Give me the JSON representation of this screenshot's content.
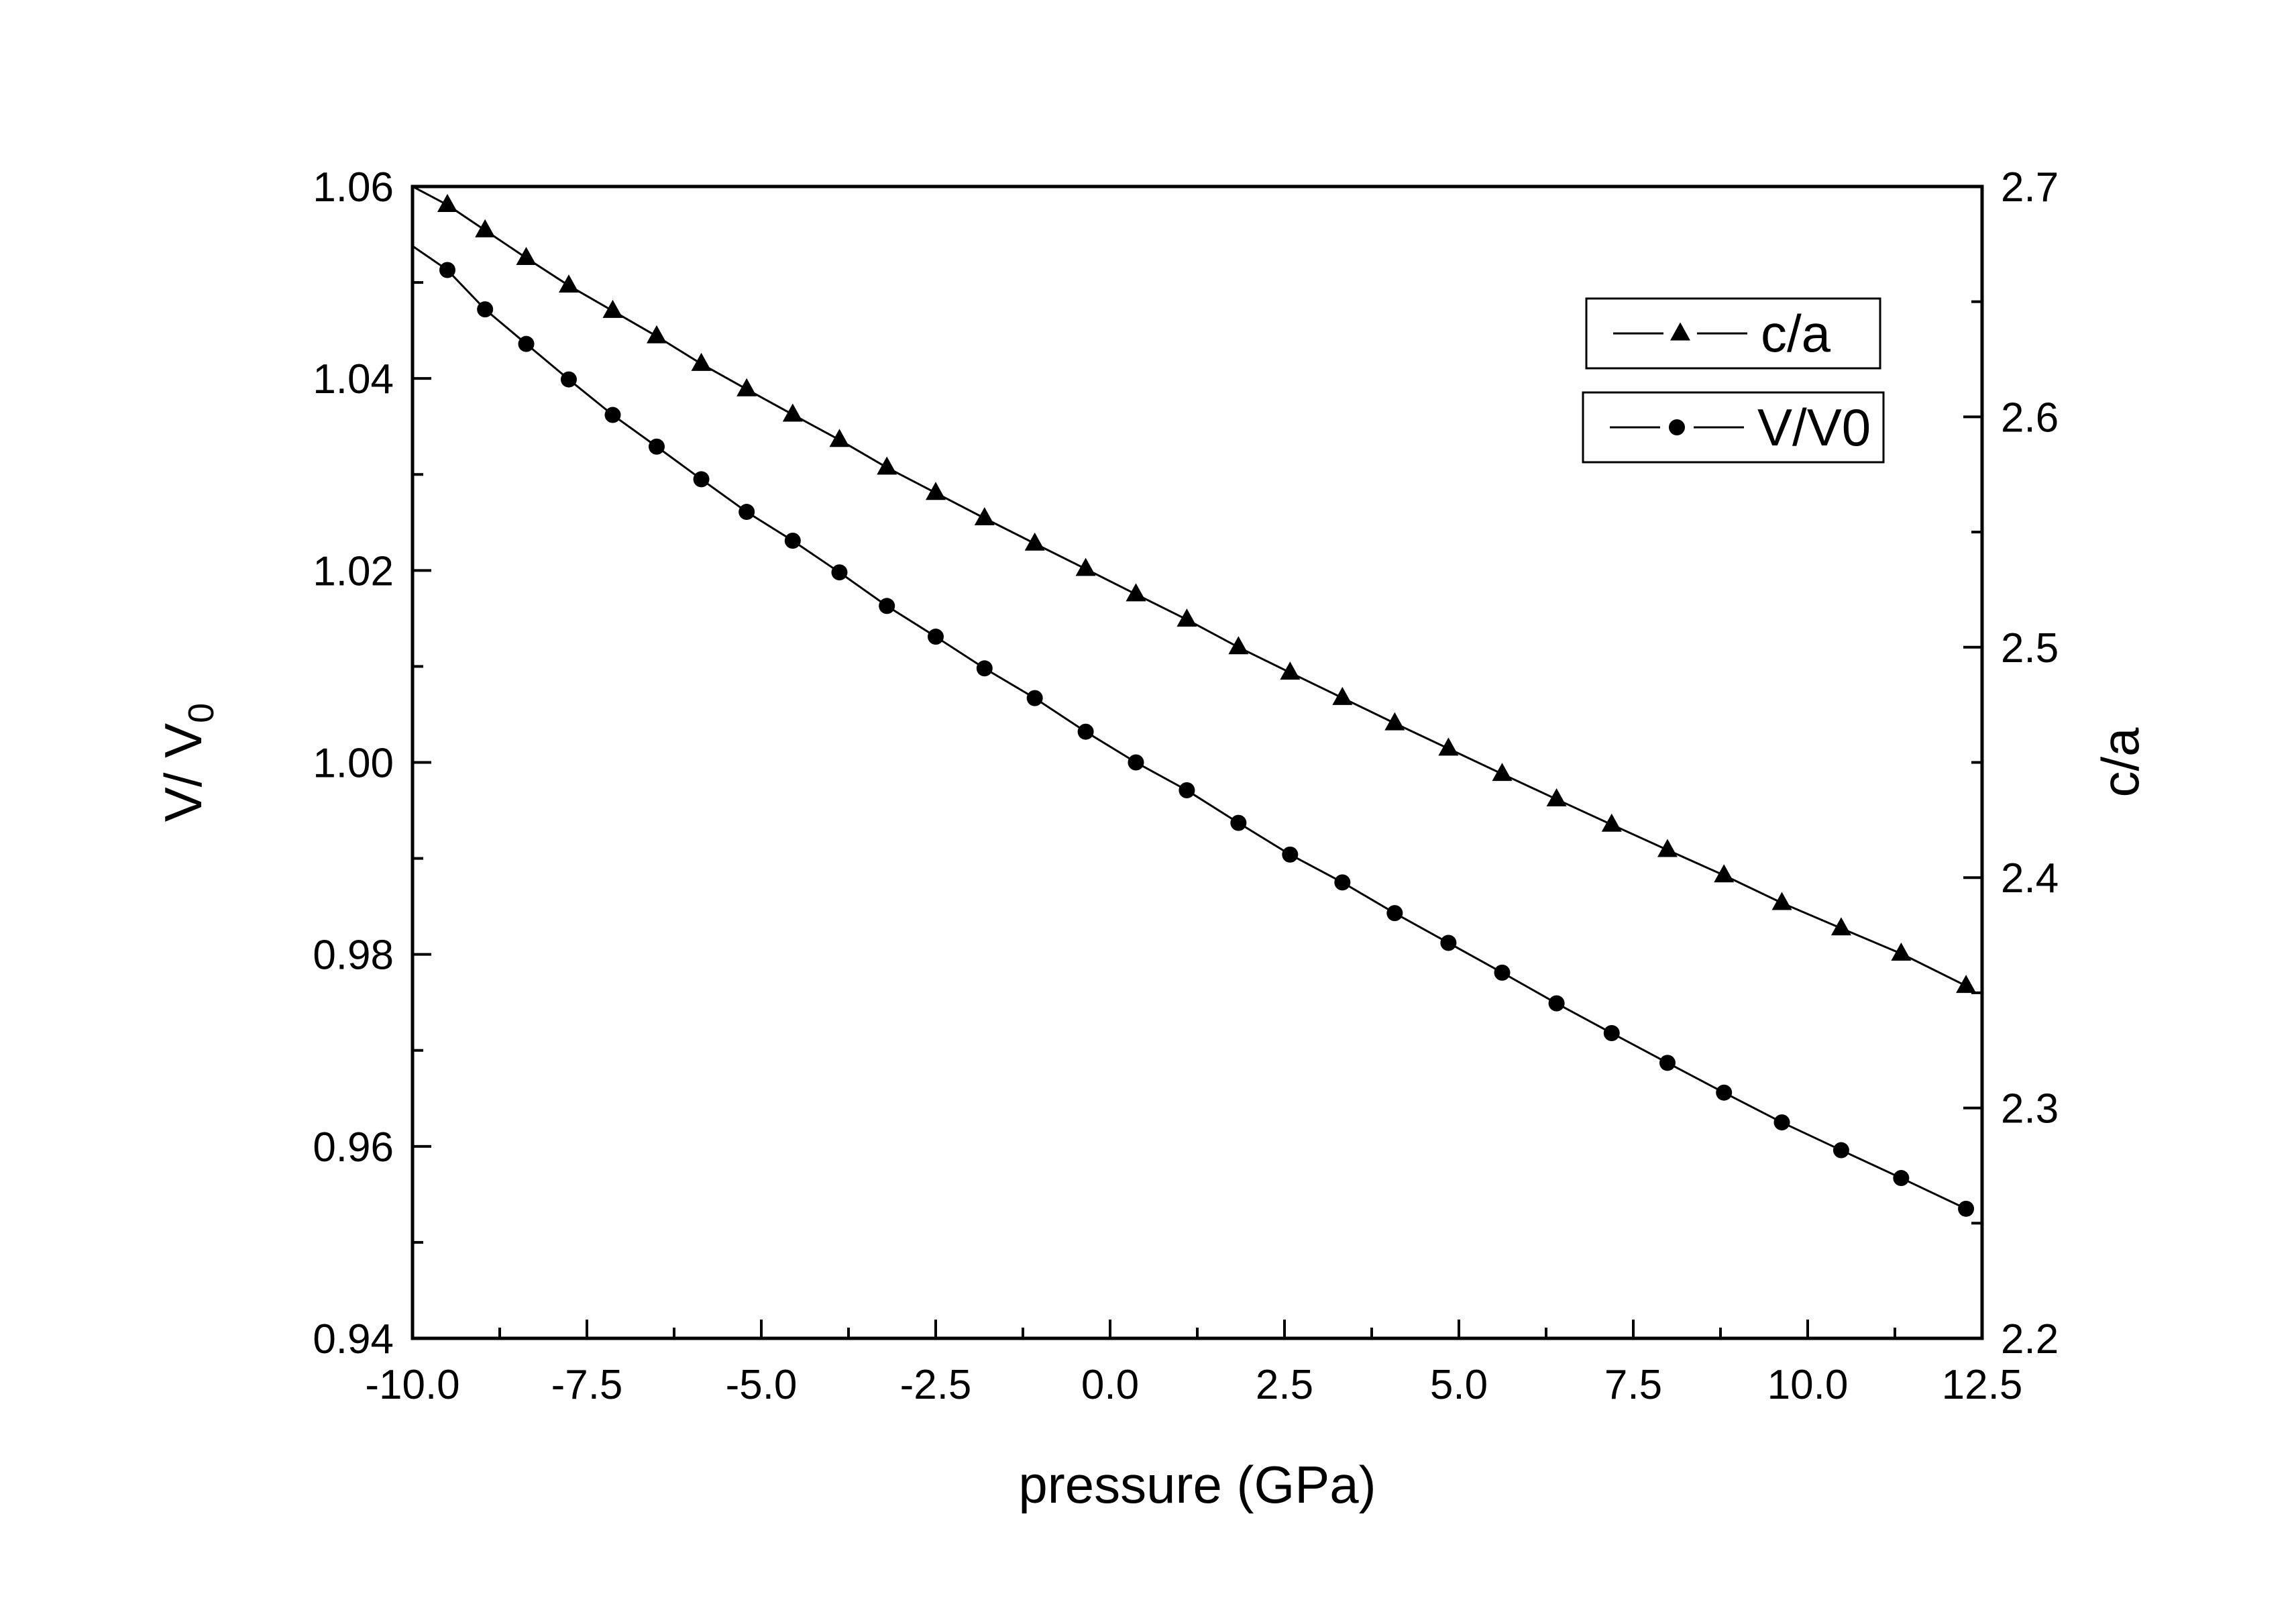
{
  "chart_data": {
    "type": "line",
    "xlabel": "pressure (GPa)",
    "ylabel_left": {
      "main": "V/ V",
      "subscript": "0"
    },
    "ylabel_right": "c/a",
    "xlim": [
      -10.0,
      12.5
    ],
    "ylim_left": [
      0.94,
      1.06
    ],
    "ylim_right": [
      2.2,
      2.7
    ],
    "x_ticks": [
      "-10.0",
      "-7.5",
      "-5.0",
      "-2.5",
      "0.0",
      "2.5",
      "5.0",
      "7.5",
      "10.0",
      "12.5"
    ],
    "x_tick_values": [
      -10.0,
      -7.5,
      -5.0,
      -2.5,
      0.0,
      2.5,
      5.0,
      7.5,
      10.0,
      12.5
    ],
    "y_left_ticks": [
      "0.94",
      "0.96",
      "0.98",
      "1.00",
      "1.02",
      "1.04",
      "1.06"
    ],
    "y_left_tick_values": [
      0.94,
      0.96,
      0.98,
      1.0,
      1.02,
      1.04,
      1.06
    ],
    "y_right_ticks": [
      "2.2",
      "2.3",
      "2.4",
      "2.5",
      "2.6",
      "2.7"
    ],
    "y_right_tick_values": [
      2.2,
      2.3,
      2.4,
      2.5,
      2.6,
      2.7
    ],
    "grid": false,
    "legend_position": "top-right",
    "series": [
      {
        "name": "c/a",
        "axis": "right",
        "marker": "triangle",
        "line_start": [
          -10.0,
          2.7
        ],
        "x": [
          -9.5,
          -8.96,
          -8.37,
          -7.76,
          -7.13,
          -6.5,
          -5.86,
          -5.21,
          -4.55,
          -3.88,
          -3.2,
          -2.5,
          -1.8,
          -1.08,
          -0.35,
          0.37,
          1.1,
          1.84,
          2.58,
          3.33,
          4.08,
          4.85,
          5.62,
          6.4,
          7.19,
          7.99,
          8.8,
          9.63,
          10.48,
          11.34,
          12.27
        ],
        "y": [
          2.692,
          2.681,
          2.669,
          2.657,
          2.646,
          2.635,
          2.623,
          2.612,
          2.601,
          2.59,
          2.578,
          2.567,
          2.556,
          2.545,
          2.534,
          2.523,
          2.512,
          2.5,
          2.489,
          2.478,
          2.467,
          2.456,
          2.445,
          2.434,
          2.423,
          2.412,
          2.401,
          2.389,
          2.378,
          2.367,
          2.353
        ]
      },
      {
        "name": "V/V0",
        "axis": "left",
        "marker": "circle",
        "line_start": [
          -10.0,
          1.0538
        ],
        "x": [
          -9.5,
          -8.96,
          -8.37,
          -7.76,
          -7.13,
          -6.5,
          -5.86,
          -5.21,
          -4.55,
          -3.88,
          -3.2,
          -2.5,
          -1.8,
          -1.08,
          -0.35,
          0.37,
          1.1,
          1.84,
          2.58,
          3.33,
          4.08,
          4.85,
          5.62,
          6.4,
          7.19,
          7.99,
          8.8,
          9.63,
          10.48,
          11.34,
          12.27
        ],
        "y": [
          1.0513,
          1.0472,
          1.0436,
          1.0399,
          1.0362,
          1.0329,
          1.0295,
          1.0261,
          1.0231,
          1.0198,
          1.0163,
          1.0131,
          1.0098,
          1.0067,
          1.0032,
          1.0,
          0.9971,
          0.9937,
          0.9904,
          0.9875,
          0.9843,
          0.9812,
          0.9781,
          0.9749,
          0.9718,
          0.9687,
          0.9656,
          0.9625,
          0.9596,
          0.9567,
          0.9535
        ]
      }
    ]
  }
}
